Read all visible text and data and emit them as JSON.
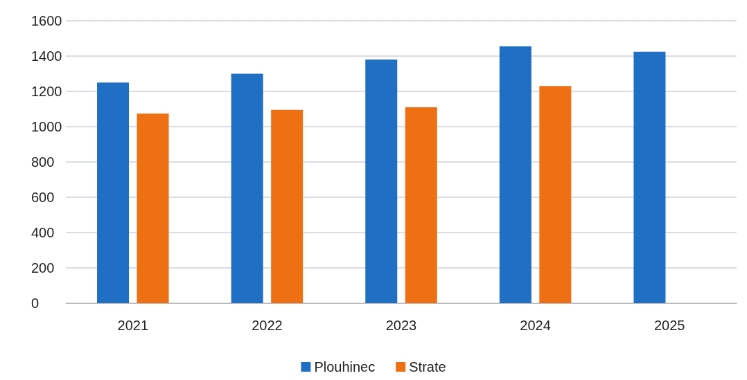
{
  "chart_data": {
    "type": "bar",
    "categories": [
      "2021",
      "2022",
      "2023",
      "2024",
      "2025"
    ],
    "series": [
      {
        "name": "Plouhinec",
        "color": "#1f6fc5",
        "values": [
          1250,
          1300,
          1380,
          1455,
          1425
        ]
      },
      {
        "name": "Strate",
        "color": "#ee7012",
        "values": [
          1075,
          1095,
          1110,
          1230,
          null
        ]
      }
    ],
    "ylim": [
      0,
      1600
    ],
    "yticks": [
      0,
      200,
      400,
      600,
      800,
      1000,
      1200,
      1400,
      1600
    ],
    "grid": "y",
    "legend": "bottom"
  }
}
